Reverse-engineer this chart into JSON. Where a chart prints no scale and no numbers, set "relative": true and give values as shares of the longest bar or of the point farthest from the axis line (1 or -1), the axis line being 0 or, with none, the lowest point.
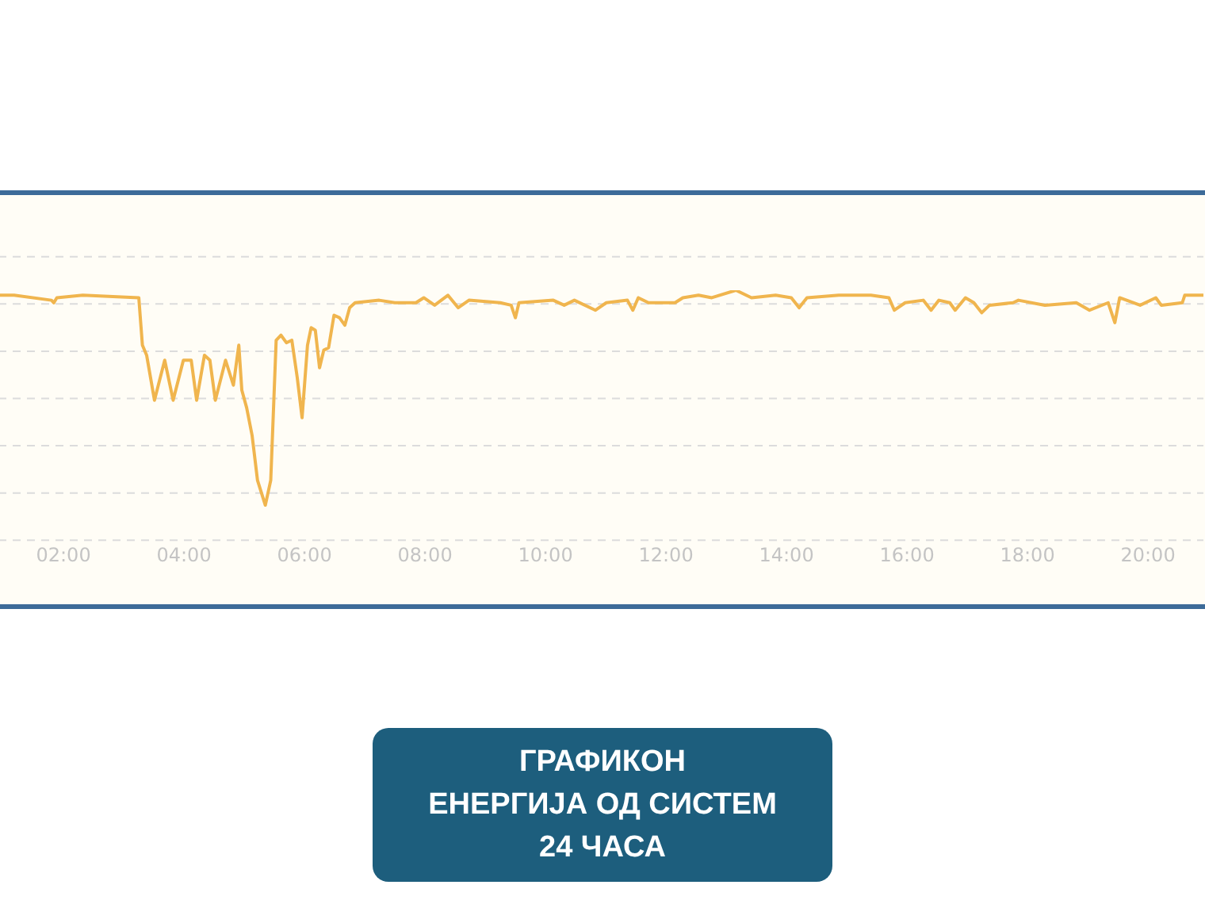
{
  "chart_data": {
    "type": "line",
    "title": "ГРАФИКОН\nЕНЕРГИЈА ОД СИСТЕМ\n24 ЧАСА",
    "relative": true,
    "xlim": [
      0.92,
      20.92
    ],
    "xticks": [
      {
        "value": 2,
        "label": "02:00"
      },
      {
        "value": 4,
        "label": "04:00"
      },
      {
        "value": 6,
        "label": "06:00"
      },
      {
        "value": 8,
        "label": "08:00"
      },
      {
        "value": 10,
        "label": "10:00"
      },
      {
        "value": 12,
        "label": "12:00"
      },
      {
        "value": 14,
        "label": "14:00"
      },
      {
        "value": 16,
        "label": "16:00"
      },
      {
        "value": 18,
        "label": "18:00"
      },
      {
        "value": 20,
        "label": "20:00"
      }
    ],
    "x": [
      0.92,
      1.18,
      1.8,
      1.84,
      1.89,
      2.32,
      3.25,
      3.31,
      3.38,
      3.51,
      3.68,
      3.82,
      3.99,
      4.12,
      4.21,
      4.34,
      4.43,
      4.52,
      4.69,
      4.82,
      4.91,
      4.96,
      5.04,
      5.13,
      5.22,
      5.35,
      5.44,
      5.53,
      5.61,
      5.7,
      5.79,
      5.88,
      5.96,
      6.05,
      6.11,
      6.18,
      6.25,
      6.32,
      6.4,
      6.49,
      6.58,
      6.67,
      6.75,
      6.84,
      7.24,
      7.5,
      7.85,
      7.98,
      8.16,
      8.38,
      8.55,
      8.73,
      9.25,
      9.43,
      9.5,
      9.56,
      10.13,
      10.31,
      10.48,
      10.83,
      11.01,
      11.36,
      11.45,
      11.54,
      11.71,
      12.15,
      12.28,
      12.54,
      12.76,
      13.16,
      13.42,
      13.82,
      14.08,
      14.21,
      14.34,
      14.87,
      15.4,
      15.7,
      15.79,
      15.97,
      16.27,
      16.4,
      16.53,
      16.71,
      16.8,
      16.97,
      17.11,
      17.24,
      17.37,
      17.76,
      17.85,
      18.29,
      18.81,
      19.03,
      19.34,
      19.45,
      19.53,
      19.87,
      20.13,
      20.22,
      20.57,
      20.61,
      20.92
    ],
    "series": [
      {
        "color": "#f0b54e",
        "values": [
          0.98,
          0.98,
          0.96,
          0.95,
          0.97,
          0.98,
          0.97,
          0.78,
          0.74,
          0.56,
          0.72,
          0.56,
          0.72,
          0.72,
          0.56,
          0.74,
          0.72,
          0.56,
          0.72,
          0.62,
          0.78,
          0.6,
          0.53,
          0.42,
          0.24,
          0.14,
          0.24,
          0.8,
          0.82,
          0.79,
          0.8,
          0.65,
          0.49,
          0.78,
          0.85,
          0.84,
          0.69,
          0.76,
          0.77,
          0.9,
          0.89,
          0.86,
          0.93,
          0.95,
          0.96,
          0.95,
          0.95,
          0.97,
          0.94,
          0.98,
          0.93,
          0.96,
          0.95,
          0.94,
          0.89,
          0.95,
          0.96,
          0.94,
          0.96,
          0.92,
          0.95,
          0.96,
          0.92,
          0.97,
          0.95,
          0.95,
          0.97,
          0.98,
          0.97,
          1.0,
          0.97,
          0.98,
          0.97,
          0.93,
          0.97,
          0.98,
          0.98,
          0.97,
          0.92,
          0.95,
          0.96,
          0.92,
          0.96,
          0.95,
          0.92,
          0.97,
          0.95,
          0.91,
          0.94,
          0.95,
          0.96,
          0.94,
          0.95,
          0.92,
          0.95,
          0.87,
          0.97,
          0.94,
          0.97,
          0.94,
          0.95,
          0.98,
          0.98
        ]
      }
    ],
    "grid": "y",
    "legend": false,
    "marker": "none",
    "line_style": "solid"
  }
}
